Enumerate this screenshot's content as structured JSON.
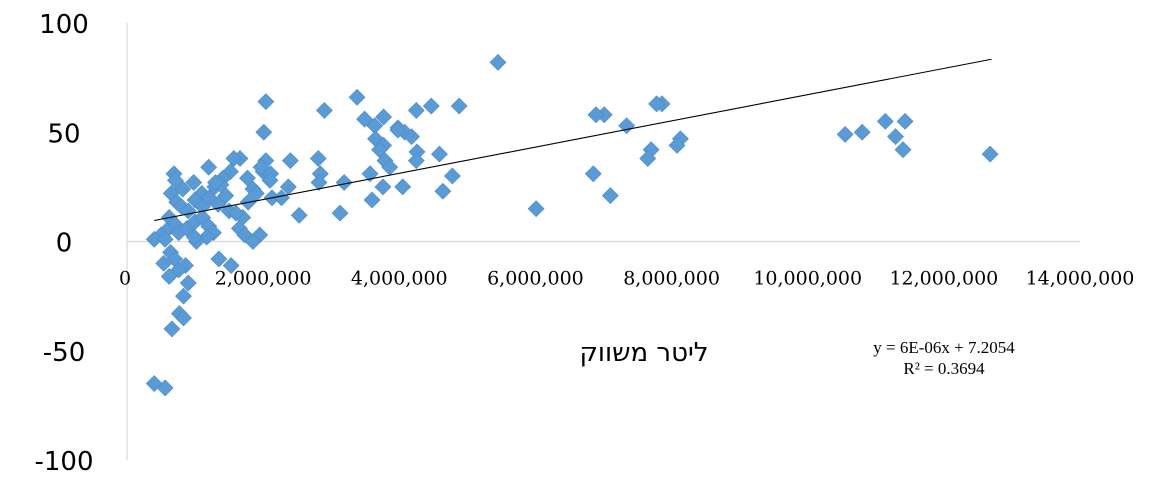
{
  "chart_data": {
    "type": "scatter",
    "title": "",
    "xlabel": "ליטר משווק",
    "ylabel": "",
    "xlim": [
      0,
      14000000
    ],
    "ylim": [
      -100,
      100
    ],
    "x_ticks": [
      0,
      2000000,
      4000000,
      6000000,
      8000000,
      10000000,
      12000000,
      14000000
    ],
    "x_tick_labels": [
      "0",
      "2,000,000",
      "4,000,000",
      "6,000,000",
      "8,000,000",
      "10,000,000",
      "12,000,000",
      "14,000,000"
    ],
    "y_ticks": [
      100,
      50,
      0,
      -50,
      -100
    ],
    "y_tick_labels": [
      "100",
      "50",
      "0",
      "-50",
      "-100"
    ],
    "grid": false,
    "legend": "none",
    "marker": "diamond",
    "colors": {
      "points": "#5b9bd5",
      "trendline": "#000000"
    },
    "trendline": {
      "type": "linear",
      "slope": 6e-06,
      "intercept": 7.2054,
      "x_range": [
        400000,
        12700000
      ],
      "equation": "y = 6E-06x + 7.2054",
      "r_squared": "R² = 0.3694"
    },
    "series": [
      {
        "points": [
          [
            5450000,
            82
          ],
          [
            3380000,
            66
          ],
          [
            2040000,
            64
          ],
          [
            2900000,
            60
          ],
          [
            4470000,
            62
          ],
          [
            4880000,
            62
          ],
          [
            4250000,
            60
          ],
          [
            7010000,
            58
          ],
          [
            6890000,
            58
          ],
          [
            7860000,
            63
          ],
          [
            7780000,
            63
          ],
          [
            3770000,
            57
          ],
          [
            3490000,
            56
          ],
          [
            3640000,
            53
          ],
          [
            3980000,
            52
          ],
          [
            4080000,
            50
          ],
          [
            4180000,
            48
          ],
          [
            3650000,
            47
          ],
          [
            3770000,
            44
          ],
          [
            3710000,
            42
          ],
          [
            4260000,
            41
          ],
          [
            3790000,
            37
          ],
          [
            3860000,
            34
          ],
          [
            3570000,
            31
          ],
          [
            3980000,
            51
          ],
          [
            2010000,
            50
          ],
          [
            8130000,
            47
          ],
          [
            8080000,
            44
          ],
          [
            7700000,
            42
          ],
          [
            7650000,
            38
          ],
          [
            7340000,
            53
          ],
          [
            10550000,
            49
          ],
          [
            10800000,
            50
          ],
          [
            11140000,
            55
          ],
          [
            11430000,
            55
          ],
          [
            11290000,
            48
          ],
          [
            11400000,
            42
          ],
          [
            12680000,
            40
          ],
          [
            6850000,
            31
          ],
          [
            7100000,
            21
          ],
          [
            6010000,
            15
          ],
          [
            4780000,
            30
          ],
          [
            4640000,
            23
          ],
          [
            4250000,
            37
          ],
          [
            4590000,
            40
          ],
          [
            4050000,
            25
          ],
          [
            3600000,
            19
          ],
          [
            3760000,
            25
          ],
          [
            3190000,
            27
          ],
          [
            3130000,
            13
          ],
          [
            2530000,
            12
          ],
          [
            2810000,
            38
          ],
          [
            2840000,
            31
          ],
          [
            2820000,
            27
          ],
          [
            2400000,
            37
          ],
          [
            2370000,
            25
          ],
          [
            2130000,
            20
          ],
          [
            2270000,
            20
          ],
          [
            2040000,
            37
          ],
          [
            2000000,
            32
          ],
          [
            1850000,
            24
          ],
          [
            1770000,
            29
          ],
          [
            2110000,
            31
          ],
          [
            1970000,
            34
          ],
          [
            1660000,
            38
          ],
          [
            1570000,
            38
          ],
          [
            1520000,
            32
          ],
          [
            1410000,
            29
          ],
          [
            1200000,
            34
          ],
          [
            1290000,
            25
          ],
          [
            1100000,
            22
          ],
          [
            980000,
            27
          ],
          [
            820000,
            24
          ],
          [
            690000,
            31
          ],
          [
            710000,
            28
          ],
          [
            650000,
            22
          ],
          [
            730000,
            18
          ],
          [
            800000,
            16
          ],
          [
            900000,
            14
          ],
          [
            1000000,
            19
          ],
          [
            1110000,
            16
          ],
          [
            1210000,
            20
          ],
          [
            1340000,
            17
          ],
          [
            1500000,
            14
          ],
          [
            1700000,
            11
          ],
          [
            1650000,
            6
          ],
          [
            1730000,
            3
          ],
          [
            1950000,
            3
          ],
          [
            1850000,
            0
          ],
          [
            1600000,
            13
          ],
          [
            1450000,
            21
          ],
          [
            1380000,
            26
          ],
          [
            1300000,
            27
          ],
          [
            1900000,
            22
          ],
          [
            2100000,
            28
          ],
          [
            1780000,
            18
          ],
          [
            620000,
            11
          ],
          [
            700000,
            8
          ],
          [
            580000,
            5
          ],
          [
            500000,
            3
          ],
          [
            400000,
            1
          ],
          [
            560000,
            1
          ],
          [
            760000,
            4
          ],
          [
            880000,
            6
          ],
          [
            1000000,
            9
          ],
          [
            1110000,
            11
          ],
          [
            1200000,
            7
          ],
          [
            1270000,
            4
          ],
          [
            1170000,
            2
          ],
          [
            1020000,
            0
          ],
          [
            990000,
            2
          ],
          [
            640000,
            -5
          ],
          [
            700000,
            -8
          ],
          [
            540000,
            -10
          ],
          [
            860000,
            -11
          ],
          [
            760000,
            -13
          ],
          [
            620000,
            -16
          ],
          [
            900000,
            -19
          ],
          [
            830000,
            -25
          ],
          [
            770000,
            -33
          ],
          [
            830000,
            -35
          ],
          [
            660000,
            -40
          ],
          [
            1350000,
            -8
          ],
          [
            1530000,
            -11
          ],
          [
            400000,
            -65
          ],
          [
            560000,
            -67
          ]
        ]
      }
    ]
  }
}
